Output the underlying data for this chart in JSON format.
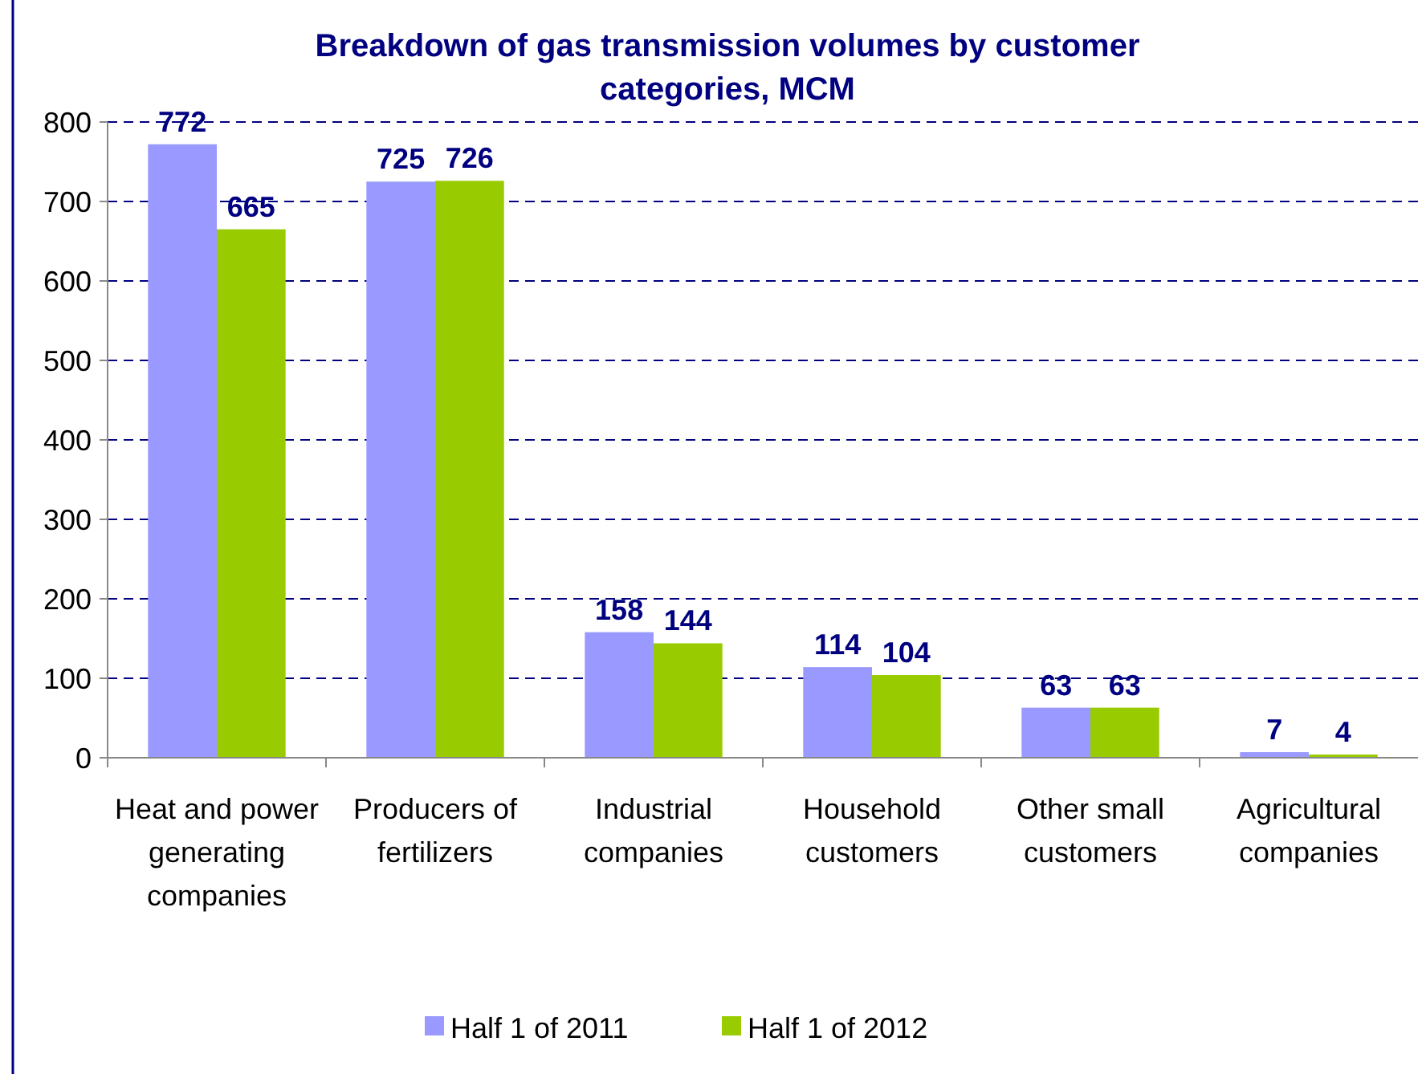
{
  "chart_data": {
    "type": "bar",
    "title": "Breakdown of gas transmission volumes by customer categories, MCM",
    "categories": [
      "Heat and power generating companies",
      "Producers of fertilizers",
      "Industrial companies",
      "Household customers",
      "Other small customers",
      "Agricultural companies"
    ],
    "series": [
      {
        "name": "Half 1 of 2011",
        "color": "#9999ff",
        "values": [
          772,
          725,
          158,
          114,
          63,
          7
        ]
      },
      {
        "name": "Half 1 of 2012",
        "color": "#99cc00",
        "values": [
          665,
          726,
          144,
          104,
          63,
          4
        ]
      }
    ],
    "ylim": [
      0,
      800
    ],
    "yticks": [
      0,
      100,
      200,
      300,
      400,
      500,
      600,
      700,
      800
    ],
    "grid": "y",
    "legend": "bottom",
    "data_labels": true
  }
}
